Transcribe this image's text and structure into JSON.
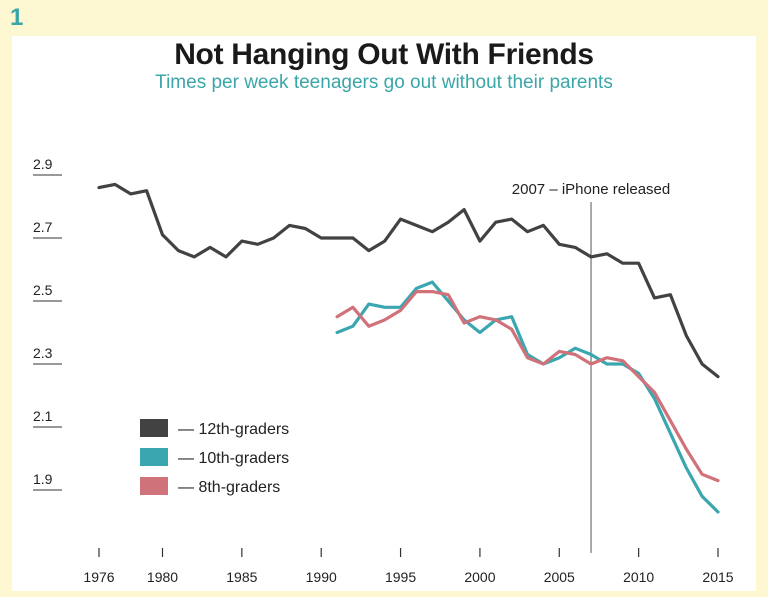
{
  "page_number": "1",
  "colors": {
    "background": "#fdf8d2",
    "panel": "#ffffff",
    "accent": "#3aa6a8",
    "text": "#1a1a1a"
  },
  "chart_data": {
    "type": "line",
    "title": "Not Hanging Out With Friends",
    "subtitle": "Times per week teenagers go out without their parents",
    "xlabel": "",
    "ylabel": "",
    "xlim": [
      1976,
      2015
    ],
    "ylim": [
      1.7,
      3.0
    ],
    "x_ticks": [
      "1976",
      "1980",
      "1985",
      "1990",
      "1995",
      "2000",
      "2005",
      "2010",
      "2015"
    ],
    "y_ticks": [
      "2.9",
      "2.7",
      "2.5",
      "2.3",
      "2.1",
      "1.9"
    ],
    "grid": false,
    "legend_position": "bottom-left",
    "annotation": {
      "x": 2007,
      "label": "2007 – iPhone released"
    },
    "series": [
      {
        "name": "— 12th-graders",
        "color": "#424242",
        "x": [
          1976,
          1977,
          1978,
          1979,
          1980,
          1981,
          1982,
          1983,
          1984,
          1985,
          1986,
          1987,
          1988,
          1989,
          1990,
          1991,
          1992,
          1993,
          1994,
          1995,
          1996,
          1997,
          1998,
          1999,
          2000,
          2001,
          2002,
          2003,
          2004,
          2005,
          2006,
          2007,
          2008,
          2009,
          2010,
          2011,
          2012,
          2013,
          2014,
          2015
        ],
        "values": [
          2.86,
          2.87,
          2.84,
          2.85,
          2.71,
          2.66,
          2.64,
          2.67,
          2.64,
          2.69,
          2.68,
          2.7,
          2.74,
          2.73,
          2.7,
          2.7,
          2.7,
          2.66,
          2.69,
          2.76,
          2.74,
          2.72,
          2.75,
          2.79,
          2.69,
          2.75,
          2.76,
          2.72,
          2.74,
          2.68,
          2.67,
          2.64,
          2.65,
          2.62,
          2.62,
          2.51,
          2.52,
          2.39,
          2.3,
          2.26
        ]
      },
      {
        "name": "— 10th-graders",
        "color": "#3aa6b0",
        "x": [
          1991,
          1992,
          1993,
          1994,
          1995,
          1996,
          1997,
          1998,
          1999,
          2000,
          2001,
          2002,
          2003,
          2004,
          2005,
          2006,
          2007,
          2008,
          2009,
          2010,
          2011,
          2012,
          2013,
          2014,
          2015
        ],
        "values": [
          2.4,
          2.42,
          2.49,
          2.48,
          2.48,
          2.54,
          2.56,
          2.5,
          2.44,
          2.4,
          2.44,
          2.45,
          2.33,
          2.3,
          2.32,
          2.35,
          2.33,
          2.3,
          2.3,
          2.27,
          2.19,
          2.08,
          1.97,
          1.88,
          1.83
        ]
      },
      {
        "name": "— 8th-graders",
        "color": "#cf7279",
        "x": [
          1991,
          1992,
          1993,
          1994,
          1995,
          1996,
          1997,
          1998,
          1999,
          2000,
          2001,
          2002,
          2003,
          2004,
          2005,
          2006,
          2007,
          2008,
          2009,
          2010,
          2011,
          2012,
          2013,
          2014,
          2015
        ],
        "values": [
          2.45,
          2.48,
          2.42,
          2.44,
          2.47,
          2.53,
          2.53,
          2.52,
          2.43,
          2.45,
          2.44,
          2.41,
          2.32,
          2.3,
          2.34,
          2.33,
          2.3,
          2.32,
          2.31,
          2.26,
          2.21,
          2.12,
          2.03,
          1.95,
          1.93
        ]
      }
    ]
  }
}
